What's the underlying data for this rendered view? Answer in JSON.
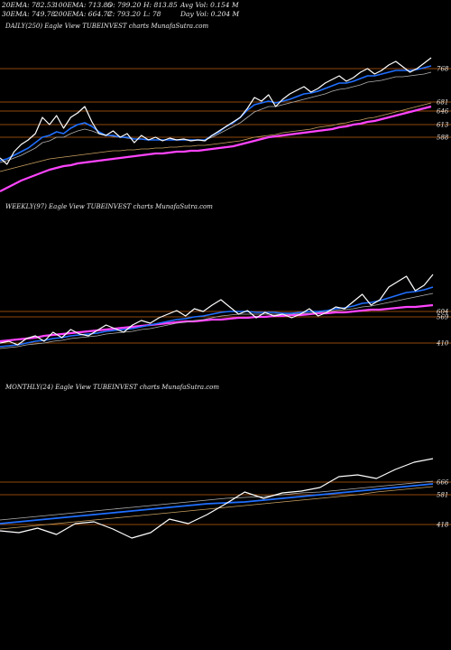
{
  "header": {
    "ema20": "20EMA: 782.53",
    "ema100": "100EMA: 713.85",
    "open": "O: 799.20",
    "high": "H: 813.85",
    "avg_vol": "Avg Vol: 0.154  M",
    "ema30": "30EMA: 749.78",
    "ema200": "200EMA: 664.72",
    "close": "C: 793.20",
    "low": "L: 78",
    "day_vol": "Day Vol: 0.204  M"
  },
  "colors": {
    "price": "#ffffff",
    "ema_fast": "#1f6fff",
    "ema_slow": "#ff44ff",
    "ema_mid": "#c8a060",
    "ema_grey": "#b0b0b0",
    "level_line": "#c06010"
  },
  "chart_data": [
    {
      "type": "line",
      "title": "DAILY(250) Eagle   View  TUBEINVEST charts MunafaSutra.com",
      "level_labels": [
        "768",
        "681",
        "646",
        "613",
        "588"
      ],
      "series": [
        {
          "values": [
            175,
            182,
            168,
            160,
            155,
            148,
            130,
            138,
            128,
            142,
            130,
            125,
            118,
            135,
            148,
            150,
            145,
            152,
            148,
            158,
            150,
            155,
            152,
            156,
            153,
            155,
            154,
            156,
            155,
            156,
            150,
            145,
            140,
            135,
            130,
            120,
            108,
            112,
            105,
            118,
            110,
            104,
            100,
            96,
            102,
            98,
            92,
            88,
            84,
            90,
            86,
            80,
            76,
            82,
            78,
            72,
            68,
            74,
            80,
            76,
            70,
            64
          ]
        },
        {
          "values": [
            178,
            176,
            172,
            168,
            164,
            158,
            152,
            150,
            146,
            148,
            142,
            138,
            136,
            140,
            146,
            150,
            150,
            152,
            152,
            154,
            154,
            155,
            155,
            155,
            155,
            155,
            155,
            155,
            155,
            155,
            150,
            146,
            140,
            136,
            130,
            122,
            116,
            114,
            112,
            114,
            112,
            110,
            107,
            104,
            103,
            101,
            98,
            95,
            92,
            92,
            90,
            87,
            84,
            84,
            82,
            80,
            78,
            78,
            78,
            77,
            75,
            73
          ]
        },
        {
          "values": [
            180,
            178,
            175,
            172,
            168,
            164,
            158,
            156,
            152,
            152,
            148,
            145,
            143,
            145,
            148,
            150,
            151,
            152,
            153,
            154,
            154,
            155,
            155,
            155,
            155,
            155,
            155,
            155,
            155,
            155,
            152,
            148,
            144,
            140,
            136,
            130,
            124,
            121,
            118,
            118,
            116,
            114,
            112,
            110,
            108,
            106,
            104,
            101,
            99,
            98,
            96,
            94,
            91,
            90,
            89,
            87,
            85,
            85,
            84,
            83,
            82,
            80
          ]
        },
        {
          "values": [
            190,
            188,
            186,
            184,
            182,
            180,
            178,
            176,
            175,
            174,
            173,
            172,
            171,
            170,
            169,
            168,
            167,
            167,
            166,
            166,
            165,
            165,
            164,
            164,
            163,
            163,
            162,
            162,
            161,
            161,
            160,
            159,
            158,
            157,
            156,
            154,
            152,
            151,
            150,
            149,
            147,
            146,
            145,
            144,
            143,
            141,
            140,
            139,
            137,
            136,
            134,
            133,
            131,
            130,
            128,
            126,
            124,
            122,
            120,
            118,
            116,
            114
          ]
        },
        {
          "values": [
            212,
            208,
            204,
            200,
            197,
            194,
            191,
            188,
            186,
            184,
            183,
            181,
            180,
            179,
            178,
            177,
            176,
            175,
            174,
            173,
            172,
            171,
            170,
            170,
            169,
            168,
            168,
            167,
            167,
            166,
            165,
            164,
            163,
            162,
            160,
            158,
            156,
            154,
            152,
            151,
            150,
            149,
            148,
            147,
            146,
            145,
            144,
            143,
            141,
            140,
            138,
            137,
            135,
            134,
            132,
            130,
            128,
            126,
            124,
            122,
            120,
            118
          ]
        }
      ]
    },
    {
      "type": "line",
      "title": "WEEKLY(97) Eagle   View  TUBEINVEST charts MunafaSutra.com",
      "level_labels": [
        "604",
        "569",
        "410"
      ],
      "series": [
        {
          "values": [
            380,
            378,
            382,
            375,
            372,
            378,
            368,
            374,
            365,
            370,
            372,
            366,
            360,
            364,
            368,
            360,
            355,
            358,
            352,
            348,
            344,
            350,
            342,
            345,
            338,
            332,
            340,
            348,
            344,
            352,
            346,
            350,
            348,
            352,
            348,
            342,
            350,
            346,
            340,
            342,
            334,
            326,
            338,
            332,
            318,
            312,
            306,
            322,
            316,
            304
          ]
        },
        {
          "values": [
            384,
            383,
            382,
            380,
            378,
            377,
            375,
            374,
            372,
            371,
            370,
            369,
            367,
            366,
            365,
            364,
            362,
            360,
            358,
            356,
            354,
            353,
            351,
            350,
            348,
            346,
            345,
            345,
            345,
            346,
            346,
            346,
            347,
            347,
            346,
            345,
            345,
            344,
            342,
            341,
            339,
            336,
            335,
            333,
            330,
            327,
            324,
            323,
            321,
            318
          ]
        },
        {
          "values": [
            386,
            385,
            384,
            382,
            381,
            380,
            378,
            377,
            375,
            374,
            373,
            372,
            370,
            369,
            368,
            367,
            365,
            364,
            362,
            360,
            358,
            357,
            355,
            354,
            352,
            350,
            349,
            348,
            348,
            348,
            348,
            348,
            348,
            348,
            347,
            347,
            346,
            345,
            344,
            343,
            342,
            340,
            339,
            337,
            335,
            333,
            331,
            329,
            327,
            325
          ]
        },
        {
          "values": [
            378,
            377,
            376,
            375,
            374,
            372,
            371,
            370,
            369,
            368,
            367,
            366,
            365,
            364,
            363,
            362,
            361,
            360,
            359,
            358,
            357,
            356,
            356,
            355,
            354,
            354,
            353,
            352,
            352,
            351,
            351,
            350,
            350,
            349,
            349,
            348,
            347,
            347,
            346,
            346,
            345,
            344,
            343,
            343,
            342,
            341,
            340,
            340,
            339,
            338
          ]
        }
      ]
    },
    {
      "type": "line",
      "title": "MONTHLY(24) Eagle   View  TUBEINVEST charts MunafaSutra.com",
      "level_labels": [
        "666",
        "581",
        "418"
      ],
      "series": [
        {
          "values": [
            588,
            590,
            585,
            592,
            580,
            578,
            586,
            596,
            590,
            575,
            580,
            570,
            558,
            545,
            552,
            546,
            544,
            540,
            528,
            526,
            530,
            520,
            512,
            508
          ]
        },
        {
          "values": [
            580,
            578,
            576,
            574,
            572,
            570,
            568,
            566,
            564,
            562,
            560,
            558,
            557,
            556,
            554,
            552,
            550,
            548,
            546,
            544,
            542,
            540,
            538,
            536
          ]
        },
        {
          "values": [
            586,
            584,
            582,
            580,
            578,
            576,
            574,
            572,
            570,
            568,
            566,
            564,
            562,
            560,
            558,
            556,
            554,
            552,
            550,
            548,
            545,
            543,
            541,
            539
          ]
        },
        {
          "values": [
            576,
            574,
            572,
            570,
            568,
            566,
            564,
            562,
            560,
            558,
            556,
            554,
            552,
            551,
            550,
            548,
            546,
            545,
            543,
            541,
            539,
            537,
            535,
            533
          ]
        }
      ]
    }
  ]
}
